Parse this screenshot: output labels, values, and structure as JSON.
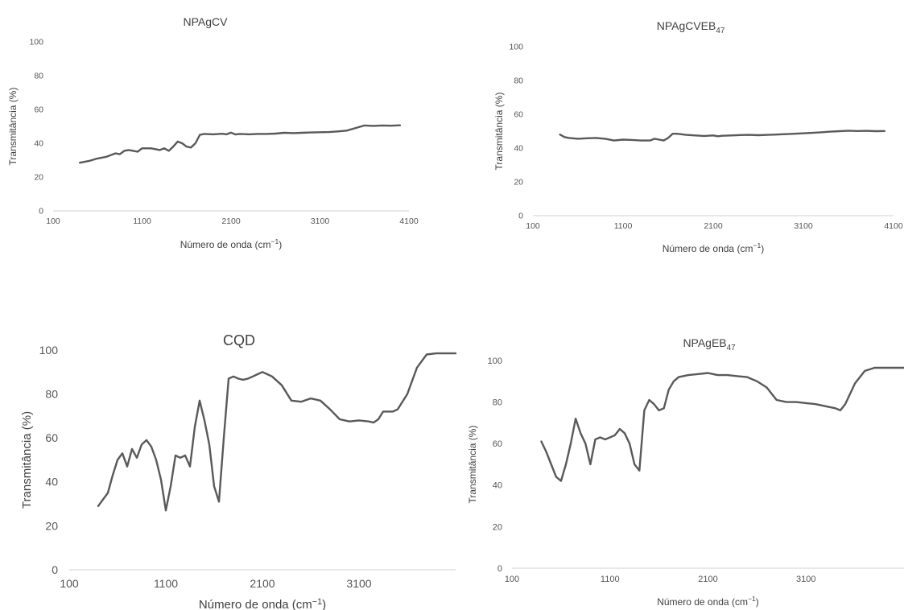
{
  "chart_data": [
    {
      "type": "line",
      "title": "NPAgCV",
      "xlabel": "Número de onda (cm⁻¹)",
      "ylabel": "Transmitância  (%)",
      "xlim": [
        100,
        4100
      ],
      "ylim": [
        0,
        100
      ],
      "xticks": [
        100,
        1100,
        2100,
        3100,
        4100
      ],
      "yticks": [
        0,
        20,
        40,
        60,
        80,
        100
      ],
      "grid": false,
      "legend": "none",
      "line_color": "#595959",
      "series": [
        {
          "x": [
            400,
            500,
            600,
            700,
            800,
            850,
            900,
            950,
            1000,
            1050,
            1100,
            1200,
            1300,
            1350,
            1400,
            1450,
            1500,
            1550,
            1600,
            1650,
            1700,
            1750,
            1800,
            1900,
            2000,
            2050,
            2100,
            2150,
            2200,
            2300,
            2400,
            2500,
            2600,
            2700,
            2800,
            2900,
            3000,
            3100,
            3200,
            3300,
            3400,
            3500,
            3600,
            3700,
            3800,
            3900,
            4000
          ],
          "y": [
            28.5,
            29.5,
            31,
            32,
            34,
            33.5,
            35.5,
            36,
            35.5,
            35,
            37,
            37,
            36,
            37,
            35.5,
            38,
            41,
            40,
            38,
            37.5,
            40,
            45,
            45.5,
            45.3,
            45.6,
            45.3,
            46.3,
            45.2,
            45.5,
            45.3,
            45.5,
            45.5,
            45.7,
            46.2,
            46,
            46.2,
            46.4,
            46.5,
            46.6,
            47,
            47.5,
            49,
            50.5,
            50.3,
            50.5,
            50.4,
            50.6
          ]
        }
      ]
    },
    {
      "type": "line",
      "title": "NPAgCVEB",
      "title_sub": "47",
      "xlabel": "Número de onda (cm⁻¹)",
      "ylabel": "Transmitância  (%)",
      "xlim": [
        100,
        4100
      ],
      "ylim": [
        0,
        100
      ],
      "xticks": [
        100,
        1100,
        2100,
        3100,
        4100
      ],
      "yticks": [
        0,
        20,
        40,
        60,
        80,
        100
      ],
      "grid": false,
      "legend": "none",
      "line_color": "#595959",
      "series": [
        {
          "x": [
            400,
            450,
            500,
            600,
            700,
            800,
            900,
            1000,
            1100,
            1200,
            1300,
            1400,
            1450,
            1500,
            1550,
            1600,
            1650,
            1700,
            1800,
            1900,
            2000,
            2100,
            2150,
            2200,
            2300,
            2400,
            2500,
            2600,
            2700,
            2800,
            3000,
            3200,
            3400,
            3500,
            3600,
            3700,
            3800,
            3900,
            4000
          ],
          "y": [
            48,
            46.5,
            46,
            45.5,
            45.8,
            46,
            45.5,
            44.5,
            45,
            44.8,
            44.5,
            44.5,
            45.5,
            45,
            44.5,
            46,
            48.5,
            48.5,
            47.8,
            47.5,
            47.2,
            47.5,
            47,
            47.3,
            47.5,
            47.7,
            47.8,
            47.6,
            47.8,
            48,
            48.5,
            49,
            49.7,
            50,
            50.3,
            50.1,
            50.2,
            50,
            50.1
          ]
        }
      ]
    },
    {
      "type": "line",
      "title": "CQD",
      "xlabel": "Número de onda (cm⁻¹)",
      "ylabel": "Transmitância  (%)",
      "xlim": [
        100,
        4100
      ],
      "ylim": [
        0,
        100
      ],
      "xticks": [
        100,
        1100,
        2100,
        3100
      ],
      "yticks": [
        0,
        20,
        40,
        60,
        80,
        100
      ],
      "grid": false,
      "legend": "none",
      "line_color": "#595959",
      "series": [
        {
          "x": [
            400,
            450,
            500,
            550,
            600,
            650,
            700,
            750,
            800,
            850,
            900,
            950,
            1000,
            1050,
            1100,
            1150,
            1200,
            1250,
            1300,
            1350,
            1400,
            1450,
            1500,
            1550,
            1600,
            1650,
            1700,
            1750,
            1800,
            1850,
            1900,
            1950,
            2000,
            2050,
            2100,
            2150,
            2200,
            2300,
            2400,
            2500,
            2600,
            2700,
            2800,
            2900,
            3000,
            3100,
            3200,
            3250,
            3300,
            3350,
            3400,
            3450,
            3500,
            3600,
            3700,
            3800,
            3900,
            4000,
            4100
          ],
          "y": [
            29,
            32,
            35,
            43,
            50,
            53,
            47,
            55,
            51,
            57,
            59,
            56,
            50,
            41,
            27,
            38,
            52,
            51,
            52,
            47,
            65,
            77,
            68,
            57,
            38,
            31,
            60,
            87,
            88,
            87,
            86.5,
            87,
            88,
            89,
            90,
            89,
            88,
            84,
            77,
            76.5,
            78,
            77,
            73,
            68.5,
            67.5,
            68,
            67.5,
            67,
            68.5,
            72,
            72,
            72,
            73,
            80,
            92,
            98,
            98.5,
            98.5,
            98.5
          ]
        }
      ]
    },
    {
      "type": "line",
      "title": "NPAgEB",
      "title_sub": "47",
      "xlabel": "Número de onda (cm⁻¹)",
      "ylabel": "Transmitância  (%)",
      "xlim": [
        100,
        4100
      ],
      "ylim": [
        0,
        100
      ],
      "xticks": [
        100,
        1100,
        2100,
        3100
      ],
      "yticks": [
        0,
        20,
        40,
        60,
        80,
        100
      ],
      "grid": false,
      "legend": "none",
      "line_color": "#595959",
      "series": [
        {
          "x": [
            400,
            450,
            500,
            550,
            600,
            650,
            700,
            750,
            800,
            850,
            900,
            950,
            1000,
            1050,
            1100,
            1150,
            1200,
            1250,
            1300,
            1350,
            1400,
            1450,
            1500,
            1550,
            1600,
            1650,
            1700,
            1750,
            1800,
            1900,
            2000,
            2100,
            2150,
            2200,
            2300,
            2400,
            2500,
            2600,
            2700,
            2800,
            2900,
            3000,
            3100,
            3200,
            3300,
            3400,
            3450,
            3500,
            3600,
            3700,
            3800,
            3900,
            4000,
            4100
          ],
          "y": [
            61,
            56,
            50,
            44,
            42,
            50,
            60,
            72,
            65,
            60,
            50,
            62,
            63,
            62,
            63,
            64,
            67,
            65,
            60,
            50,
            47,
            76,
            81,
            79,
            76,
            77,
            86,
            90,
            92,
            93,
            93.5,
            94,
            93.5,
            93,
            93,
            92.5,
            92,
            90,
            87,
            81,
            80,
            80,
            79.5,
            79,
            78,
            77,
            76,
            79,
            89,
            95,
            96.5,
            96.5,
            96.5,
            96.5
          ]
        }
      ]
    }
  ]
}
